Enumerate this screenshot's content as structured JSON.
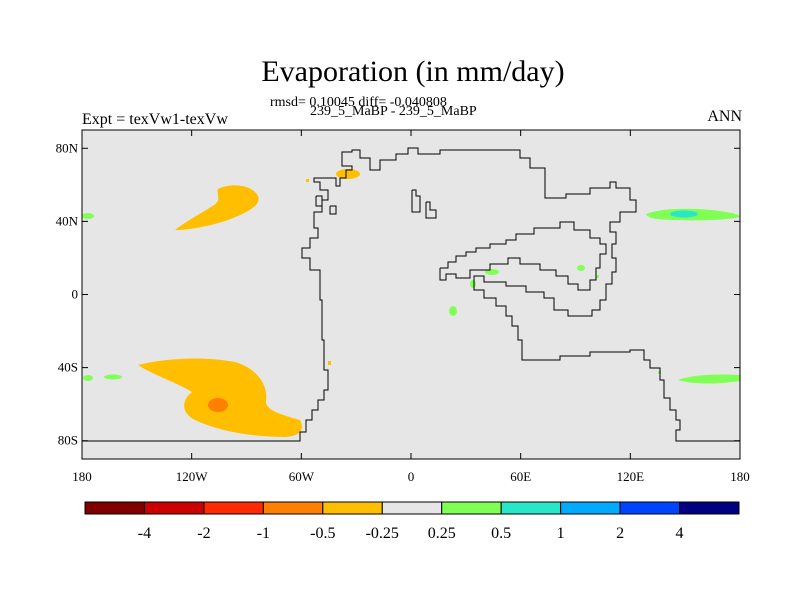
{
  "title": "Evaporation (in mm/day)",
  "stats": "rmsd= 0.10045 diff= -0.040808",
  "case": "239_5_MaBP - 239_5_MaBP",
  "expt": "Expt = texVw1-texVw",
  "season": "ANN",
  "map": {
    "lon_range": [
      -180,
      180
    ],
    "lat_range": [
      -90,
      90
    ],
    "background_color": "#e6e6e6",
    "x_ticks": [
      {
        "lon": -180,
        "label": "180"
      },
      {
        "lon": -120,
        "label": "120W"
      },
      {
        "lon": -60,
        "label": "60W"
      },
      {
        "lon": 0,
        "label": "0"
      },
      {
        "lon": 60,
        "label": "60E"
      },
      {
        "lon": 120,
        "label": "120E"
      },
      {
        "lon": 180,
        "label": "180"
      }
    ],
    "y_ticks": [
      {
        "lat": 80,
        "label": "80N"
      },
      {
        "lat": 40,
        "label": "40N"
      },
      {
        "lat": 0,
        "label": "0"
      },
      {
        "lat": -40,
        "label": "40S"
      },
      {
        "lat": -80,
        "label": "80S"
      }
    ]
  },
  "colorbar": {
    "colors": [
      "#800000",
      "#cc0000",
      "#ff2a00",
      "#ff7f00",
      "#ffbf00",
      "#e6e6e6",
      "#80ff55",
      "#2ae6c8",
      "#00aaff",
      "#0044ff",
      "#000080"
    ],
    "labels": [
      "-4",
      "-2",
      "-1",
      "-0.5",
      "-0.25",
      "0.25",
      "0.5",
      "1",
      "2",
      "4"
    ]
  }
}
